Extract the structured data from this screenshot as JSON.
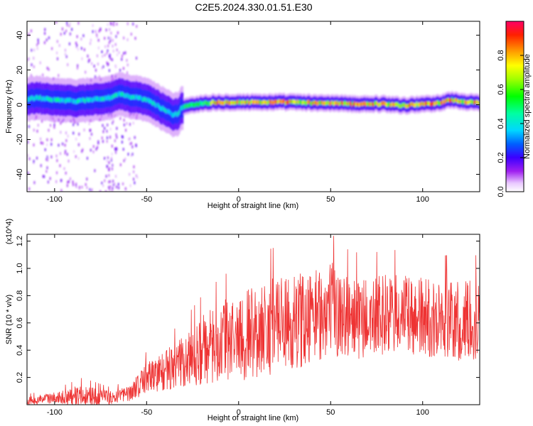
{
  "title": "C2E5.2024.330.01.51.E30",
  "chart_data": [
    {
      "type": "heatmap",
      "xlabel": "Height of straight line (km)",
      "ylabel": "Frequency (Hz)",
      "xlim": [
        -115,
        131
      ],
      "ylim": [
        -50,
        48
      ],
      "xticks": [
        -100,
        -50,
        0,
        50,
        100
      ],
      "yticks": [
        -40,
        -20,
        0,
        20,
        40
      ],
      "colorbar": {
        "label": "Normalized spectral amplitude",
        "range": [
          0,
          1
        ],
        "ticks": [
          0.0,
          0.2,
          0.4,
          0.6,
          0.8
        ]
      },
      "ridge": {
        "x": [
          -115,
          -110,
          -100,
          -90,
          -80,
          -70,
          -65,
          -60,
          -55,
          -50,
          -45,
          -40,
          -35,
          -33,
          -30,
          -25,
          -20,
          -10,
          0,
          10,
          20,
          30,
          40,
          50,
          60,
          70,
          80,
          90,
          100,
          110,
          115,
          120,
          125,
          131
        ],
        "y": [
          3,
          4,
          3,
          2,
          3,
          4,
          6,
          5,
          4,
          3,
          0,
          -3,
          -6,
          -5,
          -1,
          0,
          1,
          1.5,
          1.5,
          1.5,
          1.5,
          1.5,
          1,
          1,
          0.5,
          0.5,
          0.5,
          -0.5,
          0.5,
          1,
          3,
          2,
          1.5,
          1
        ]
      }
    },
    {
      "type": "line",
      "xlabel": "Height of straight line (km)",
      "ylabel": "SNR (10 * v/v)",
      "yscale_label": "(x10^4)",
      "xlim": [
        -115,
        131
      ],
      "ylim": [
        0,
        1.25
      ],
      "xticks": [
        -100,
        -50,
        0,
        50,
        100
      ],
      "yticks": [
        0.2,
        0.4,
        0.6,
        0.8,
        1.0,
        1.2
      ],
      "series": [
        {
          "color": "#ee3333",
          "envelope_x": [
            -115,
            -100,
            -85,
            -70,
            -60,
            -50,
            -40,
            -30,
            -20,
            -10,
            0,
            10,
            20,
            30,
            40,
            50,
            60,
            70,
            80,
            90,
            100,
            110,
            120,
            131
          ],
          "envelope_mean": [
            0.03,
            0.05,
            0.07,
            0.05,
            0.08,
            0.2,
            0.25,
            0.3,
            0.4,
            0.45,
            0.5,
            0.55,
            0.58,
            0.6,
            0.65,
            0.7,
            0.65,
            0.62,
            0.66,
            0.65,
            0.63,
            0.62,
            0.6,
            0.62
          ],
          "envelope_amp": [
            0.03,
            0.04,
            0.08,
            0.05,
            0.06,
            0.12,
            0.15,
            0.2,
            0.25,
            0.3,
            0.33,
            0.35,
            0.36,
            0.35,
            0.35,
            0.35,
            0.3,
            0.3,
            0.3,
            0.3,
            0.3,
            0.3,
            0.3,
            0.3
          ]
        }
      ]
    }
  ]
}
